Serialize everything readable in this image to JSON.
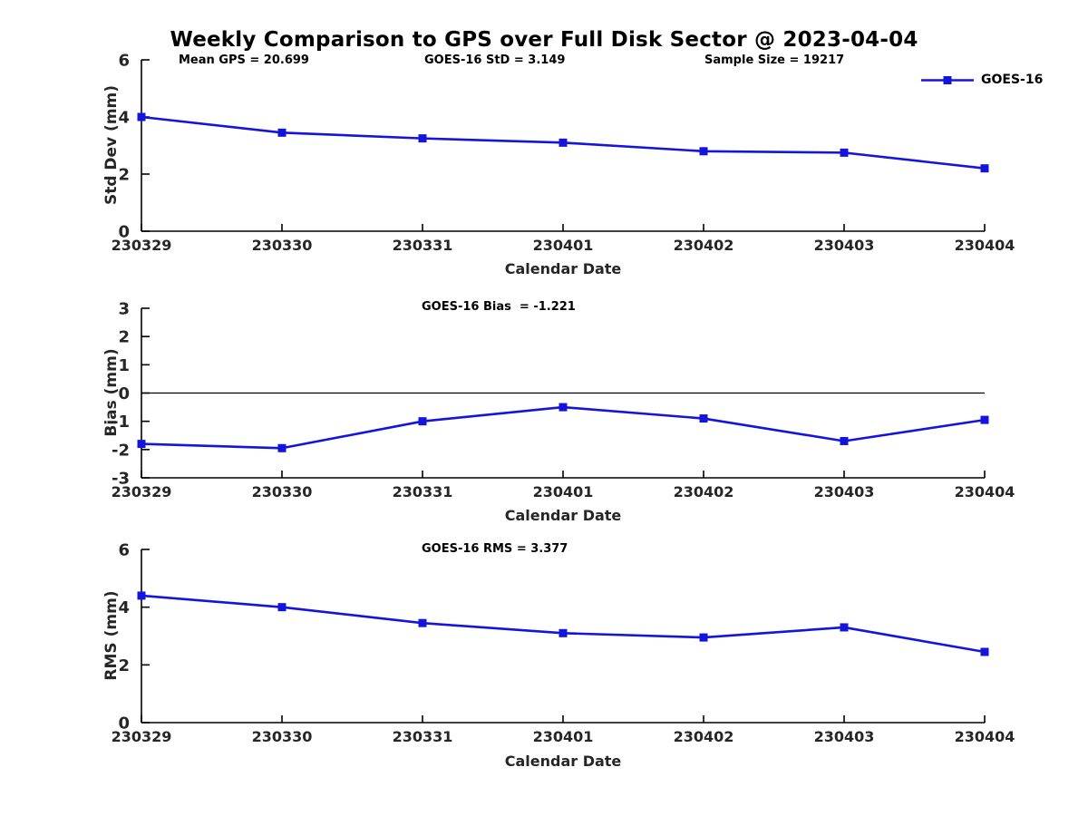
{
  "figure_title": "Weekly Comparison to GPS over Full Disk Sector @ 2023-04-04",
  "legend": {
    "label": "GOES-16"
  },
  "colors": {
    "line": "#1414dd",
    "axis": "#000000",
    "tick_text": "#262626",
    "title_text": "#000000",
    "background": "#ffffff"
  },
  "chart_data": [
    {
      "type": "line",
      "title": "",
      "ylabel": "Std Dev (mm)",
      "xlabel": "Calendar Date",
      "x": [
        "230329",
        "230330",
        "230331",
        "230401",
        "230402",
        "230403",
        "230404"
      ],
      "series": [
        {
          "name": "GOES-16",
          "values": [
            4.0,
            3.45,
            3.25,
            3.1,
            2.8,
            2.75,
            2.2
          ]
        }
      ],
      "ylim": [
        0,
        6
      ],
      "yticks": [
        0,
        2,
        4,
        6
      ],
      "grid": false,
      "legend_position": "top-right",
      "annotations": [
        "Mean GPS = 20.699",
        "GOES-16 StD = 3.149",
        "Sample Size = 19217"
      ]
    },
    {
      "type": "line",
      "title": "",
      "ylabel": "Bias (mm)",
      "xlabel": "Calendar Date",
      "x": [
        "230329",
        "230330",
        "230331",
        "230401",
        "230402",
        "230403",
        "230404"
      ],
      "series": [
        {
          "name": "GOES-16",
          "values": [
            -1.8,
            -1.95,
            -1.0,
            -0.5,
            -0.9,
            -1.7,
            -0.95
          ]
        }
      ],
      "ylim": [
        -3,
        3
      ],
      "yticks": [
        -3,
        -2,
        -1,
        0,
        1,
        2,
        3
      ],
      "zero_line": true,
      "grid": false,
      "annotations": [
        "GOES-16 Bias  = -1.221"
      ]
    },
    {
      "type": "line",
      "title": "",
      "ylabel": "RMS (mm)",
      "xlabel": "Calendar Date",
      "x": [
        "230329",
        "230330",
        "230331",
        "230401",
        "230402",
        "230403",
        "230404"
      ],
      "series": [
        {
          "name": "GOES-16",
          "values": [
            4.4,
            4.0,
            3.45,
            3.1,
            2.95,
            3.3,
            2.45
          ]
        }
      ],
      "ylim": [
        0,
        6
      ],
      "yticks": [
        0,
        2,
        4,
        6
      ],
      "grid": false,
      "annotations": [
        "GOES-16 RMS = 3.377"
      ]
    }
  ]
}
